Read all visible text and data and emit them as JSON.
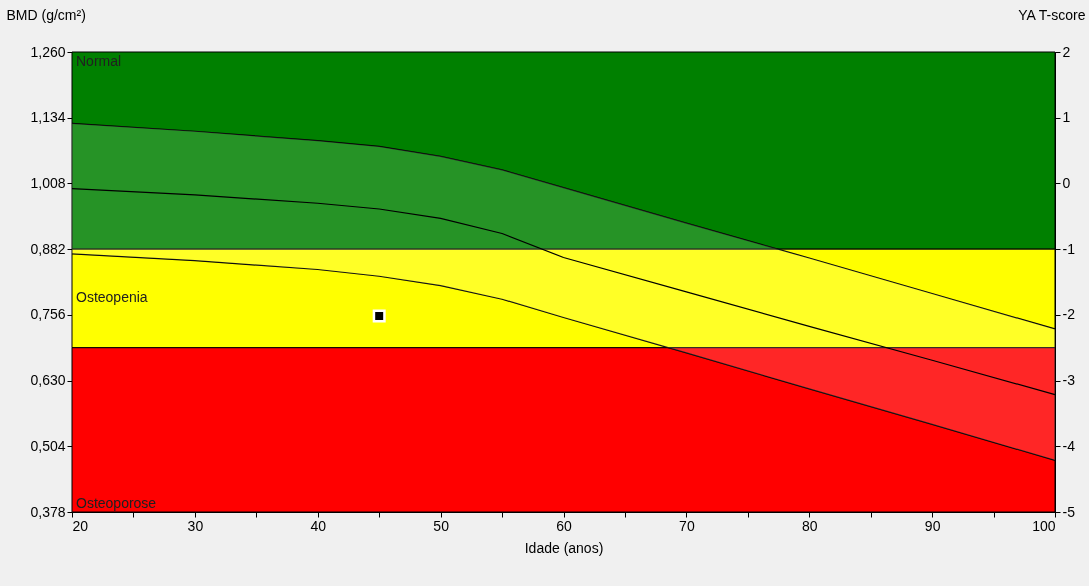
{
  "chart_data": {
    "type": "line",
    "xlabel": "Idade (anos)",
    "ylabel": "BMD (g/cm²)",
    "y2label": "YA T-score",
    "x": [
      20,
      30,
      40,
      45,
      50,
      55,
      60,
      70,
      80,
      90,
      100
    ],
    "series": [
      {
        "color": "#000000",
        "values": [
          1.123,
          1.108,
          1.09,
          1.079,
          1.06,
          1.034,
          1.0,
          0.932,
          0.865,
          0.797,
          0.729
        ]
      },
      {
        "color": "#000000",
        "values": [
          0.873,
          0.86,
          0.843,
          0.83,
          0.812,
          0.786,
          0.751,
          0.683,
          0.614,
          0.546,
          0.477
        ]
      },
      {
        "color": "#000000",
        "values": [
          0.998,
          0.986,
          0.97,
          0.959,
          0.941,
          0.912,
          0.866,
          0.8,
          0.734,
          0.669,
          0.603
        ],
        "lower": [
          0.873,
          0.86,
          0.843,
          0.83,
          0.812,
          0.786,
          0.751,
          0.683,
          0.614,
          0.546,
          0.477
        ],
        "upper": [
          1.123,
          1.108,
          1.09,
          1.079,
          1.06,
          1.034,
          1.0,
          0.932,
          0.865,
          0.797,
          0.729
        ]
      },
      {
        "type": "scatter",
        "color": "#000000",
        "marker": "square",
        "x": [
          45
        ],
        "values": [
          0.754
        ]
      }
    ],
    "xlim": [
      20,
      100
    ],
    "xticks": [
      20,
      {
        "value": 25,
        "label": null
      },
      30,
      {
        "value": 35,
        "label": null
      },
      40,
      {
        "value": 45,
        "label": null
      },
      50,
      {
        "value": 55,
        "label": null
      },
      60,
      {
        "value": 65,
        "label": null
      },
      70,
      {
        "value": 75,
        "label": null
      },
      80,
      {
        "value": 85,
        "label": null
      },
      90,
      {
        "value": 95,
        "label": null
      },
      100
    ],
    "ylim": [
      0.378,
      1.26
    ],
    "yticks": [
      {
        "value": 0.378,
        "label": "0,378"
      },
      {
        "value": 0.504,
        "label": "0,504"
      },
      {
        "value": 0.63,
        "label": "0,630"
      },
      {
        "value": 0.756,
        "label": "0,756"
      },
      {
        "value": 0.882,
        "label": "0,882"
      },
      {
        "value": 1.008,
        "label": "1,008"
      },
      {
        "value": 1.134,
        "label": "1,134"
      },
      {
        "value": 1.26,
        "label": "1,260"
      }
    ],
    "y2lim": [
      -5,
      2
    ],
    "y2ticks": [
      -5,
      -4,
      -3,
      -2,
      -1,
      0,
      1,
      2
    ],
    "bands": [
      {
        "axis": "y2",
        "from": -1,
        "to": 2,
        "label": "Normal",
        "color": "#008000"
      },
      {
        "axis": "y2",
        "from": -2.5,
        "to": -1,
        "label": "Osteopenia",
        "color": "#ffff00"
      },
      {
        "axis": "y2",
        "from": -5,
        "to": -2.5,
        "label": "Osteoporose",
        "color": "#ff0000"
      }
    ]
  }
}
